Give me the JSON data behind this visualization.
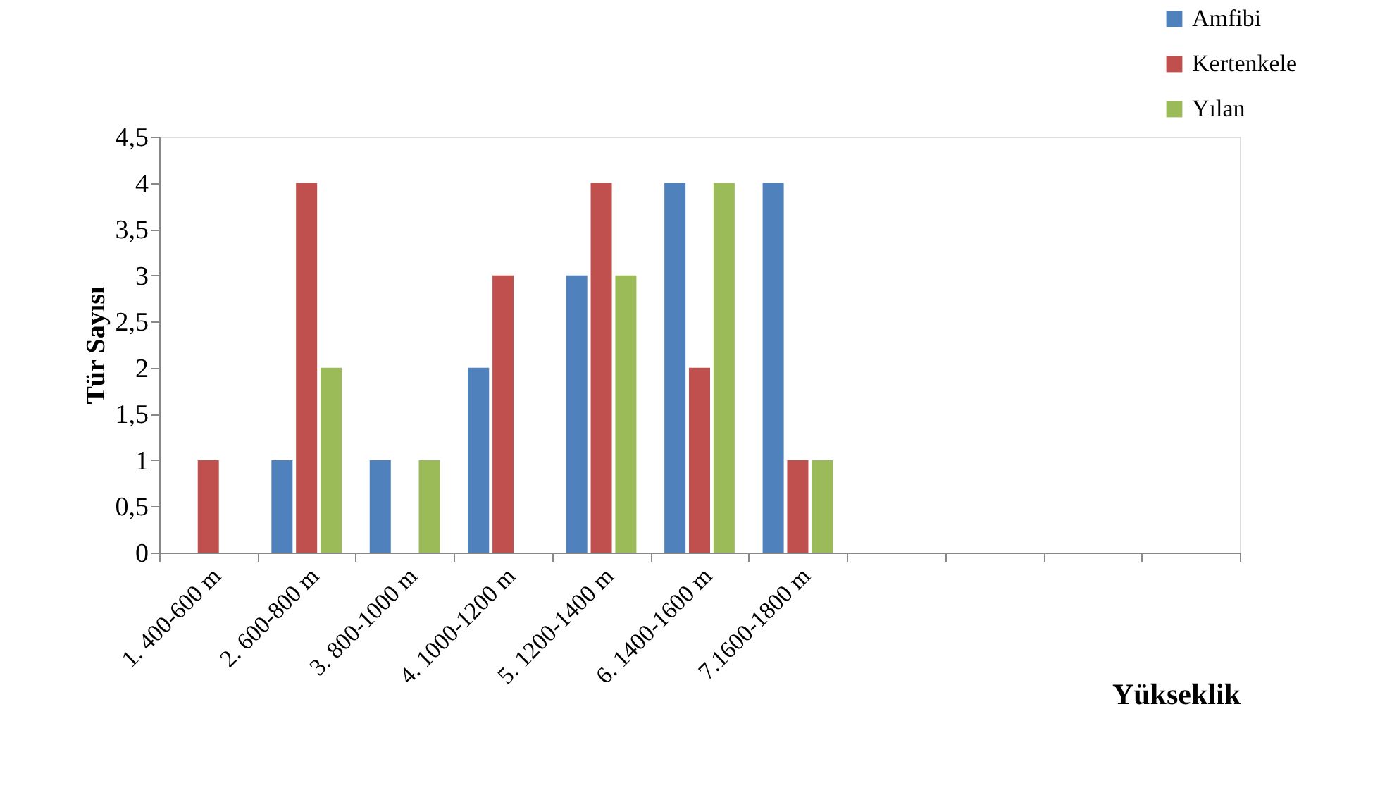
{
  "chart_data": {
    "type": "bar",
    "xlabel": "Yükseklik",
    "ylabel": "Tür Sayısı",
    "categories": [
      "1. 400-600 m",
      "2. 600-800 m",
      "3. 800-1000 m",
      "4. 1000-1200 m",
      "5. 1200-1400 m",
      "6. 1400-1600 m",
      "7.1600-1800 m",
      null,
      null,
      null,
      null
    ],
    "series": [
      {
        "name": "Amfibi",
        "color": "#4f81bd",
        "values": [
          0,
          1,
          1,
          2,
          3,
          4,
          4,
          null,
          null,
          null,
          null
        ]
      },
      {
        "name": "Kertenkele",
        "color": "#c0504d",
        "values": [
          1,
          4,
          0,
          3,
          4,
          2,
          1,
          null,
          null,
          null,
          null
        ]
      },
      {
        "name": "Yılan",
        "color": "#9bbb59",
        "values": [
          0,
          2,
          1,
          0,
          3,
          4,
          1,
          null,
          null,
          null,
          null
        ]
      }
    ],
    "ylim": [
      0,
      4.5
    ],
    "yticks": [
      0,
      {
        "value": 0.5,
        "label": "0,5"
      },
      1,
      {
        "value": 1.5,
        "label": "1,5"
      },
      2,
      {
        "value": 2.5,
        "label": "2,5"
      },
      3,
      {
        "value": 3.5,
        "label": "3,5"
      },
      4,
      {
        "value": 4.5,
        "label": "4,5"
      }
    ],
    "grid": false,
    "legend": "top right"
  }
}
